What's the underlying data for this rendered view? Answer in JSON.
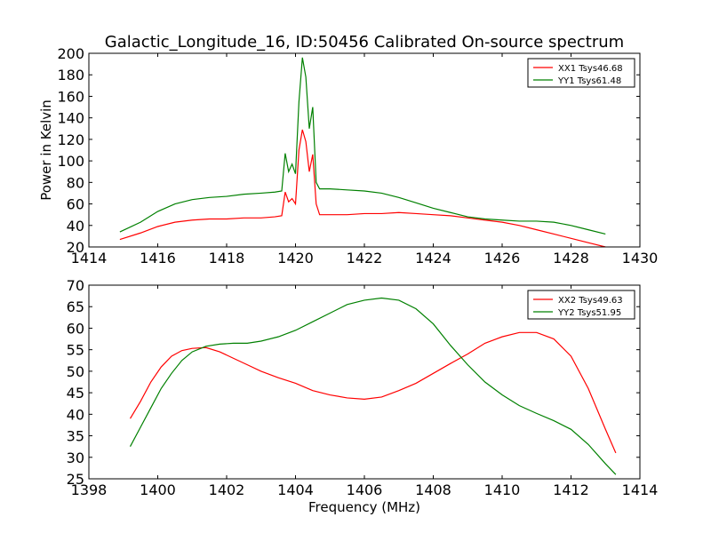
{
  "figure_title": "Galactic_Longitude_16, ID:50456 Calibrated On-source spectrum",
  "colors": {
    "series1": "#ff0000",
    "series2": "#008000"
  },
  "chart_data": [
    {
      "type": "line",
      "title": "Galactic_Longitude_16, ID:50456 Calibrated On-source spectrum",
      "xlabel": "",
      "ylabel": "Power in Kelvin",
      "xlim": [
        1414,
        1430
      ],
      "ylim": [
        20,
        200
      ],
      "xticks": [
        "1414",
        "1416",
        "1418",
        "1420",
        "1422",
        "1424",
        "1426",
        "1428",
        "1430"
      ],
      "yticks": [
        "20",
        "40",
        "60",
        "80",
        "100",
        "120",
        "140",
        "160",
        "180",
        "200"
      ],
      "grid": false,
      "legend_position": "top-right",
      "series": [
        {
          "name": "XX1 Tsys46.68",
          "color": "#ff0000",
          "x": [
            1414.9,
            1415.5,
            1416.0,
            1416.5,
            1417.0,
            1417.5,
            1418.0,
            1418.5,
            1419.0,
            1419.4,
            1419.6,
            1419.7,
            1419.8,
            1419.9,
            1420.0,
            1420.1,
            1420.2,
            1420.3,
            1420.4,
            1420.5,
            1420.6,
            1420.7,
            1421.0,
            1421.5,
            1422.0,
            1422.5,
            1423.0,
            1423.5,
            1424.0,
            1424.5,
            1425.0,
            1425.5,
            1426.0,
            1426.5,
            1427.0,
            1427.5,
            1428.0,
            1428.5,
            1429.0
          ],
          "y": [
            27,
            33,
            39,
            43,
            45,
            46,
            46,
            47,
            47,
            48,
            49,
            71,
            62,
            65,
            60,
            110,
            129,
            118,
            90,
            106,
            60,
            50,
            50,
            50,
            51,
            51,
            52,
            51,
            50,
            49,
            47,
            45,
            43,
            40,
            36,
            32,
            28,
            24,
            20
          ]
        },
        {
          "name": "YY1 Tsys61.48",
          "color": "#008000",
          "x": [
            1414.9,
            1415.5,
            1416.0,
            1416.5,
            1417.0,
            1417.5,
            1418.0,
            1418.5,
            1419.0,
            1419.4,
            1419.6,
            1419.7,
            1419.8,
            1419.9,
            1420.0,
            1420.1,
            1420.2,
            1420.3,
            1420.4,
            1420.5,
            1420.6,
            1420.7,
            1421.0,
            1421.5,
            1422.0,
            1422.5,
            1423.0,
            1423.5,
            1424.0,
            1424.5,
            1425.0,
            1425.5,
            1426.0,
            1426.5,
            1427.0,
            1427.5,
            1428.0,
            1428.5,
            1429.0
          ],
          "y": [
            34,
            43,
            53,
            60,
            64,
            66,
            67,
            69,
            70,
            71,
            72,
            107,
            90,
            97,
            88,
            155,
            196,
            178,
            130,
            150,
            80,
            74,
            74,
            73,
            72,
            70,
            66,
            61,
            56,
            52,
            48,
            46,
            45,
            44,
            44,
            43,
            40,
            36,
            32
          ]
        }
      ]
    },
    {
      "type": "line",
      "title": "",
      "xlabel": "Frequency (MHz)",
      "ylabel": "",
      "xlim": [
        1398,
        1414
      ],
      "ylim": [
        25,
        70
      ],
      "xticks": [
        "1398",
        "1400",
        "1402",
        "1404",
        "1406",
        "1408",
        "1410",
        "1412",
        "1414"
      ],
      "yticks": [
        "25",
        "30",
        "35",
        "40",
        "45",
        "50",
        "55",
        "60",
        "65",
        "70"
      ],
      "grid": false,
      "legend_position": "top-right",
      "series": [
        {
          "name": "XX2 Tsys49.63",
          "color": "#ff0000",
          "x": [
            1399.2,
            1399.5,
            1399.8,
            1400.1,
            1400.4,
            1400.7,
            1401.0,
            1401.4,
            1401.8,
            1402.2,
            1402.6,
            1403.0,
            1403.5,
            1404.0,
            1404.5,
            1405.0,
            1405.5,
            1406.0,
            1406.5,
            1407.0,
            1407.5,
            1408.0,
            1408.5,
            1409.0,
            1409.5,
            1410.0,
            1410.5,
            1411.0,
            1411.5,
            1412.0,
            1412.5,
            1413.0,
            1413.3
          ],
          "y": [
            39,
            43,
            47.5,
            51,
            53.5,
            54.8,
            55.3,
            55.5,
            54.5,
            53,
            51.5,
            50,
            48.5,
            47.2,
            45.5,
            44.5,
            43.8,
            43.5,
            44,
            45.5,
            47.2,
            49.5,
            51.8,
            54,
            56.5,
            58,
            59,
            59,
            57.5,
            53.5,
            46,
            36.5,
            31
          ]
        },
        {
          "name": "YY2 Tsys51.95",
          "color": "#008000",
          "x": [
            1399.2,
            1399.5,
            1399.8,
            1400.1,
            1400.4,
            1400.7,
            1401.0,
            1401.4,
            1401.8,
            1402.2,
            1402.6,
            1403.0,
            1403.5,
            1404.0,
            1404.5,
            1405.0,
            1405.5,
            1406.0,
            1406.5,
            1407.0,
            1407.5,
            1408.0,
            1408.5,
            1409.0,
            1409.5,
            1410.0,
            1410.5,
            1411.0,
            1411.5,
            1412.0,
            1412.5,
            1413.0,
            1413.3
          ],
          "y": [
            32.5,
            37,
            41.5,
            46,
            49.5,
            52.5,
            54.5,
            55.8,
            56.3,
            56.5,
            56.5,
            57,
            58,
            59.5,
            61.5,
            63.5,
            65.5,
            66.5,
            67,
            66.5,
            64.5,
            61,
            56,
            51.5,
            47.5,
            44.5,
            42,
            40.2,
            38.5,
            36.5,
            33,
            28.5,
            26
          ]
        }
      ]
    }
  ]
}
